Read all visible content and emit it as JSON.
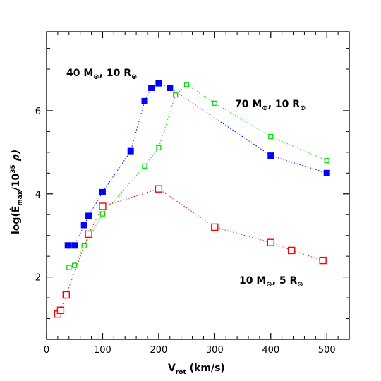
{
  "chart_data": {
    "type": "scatter",
    "xlabel": "V",
    "xlabel_sub": "rot",
    "xlabel_unit": " (km/s)",
    "ylabel": "log(Ė",
    "ylabel_sub": "max",
    "ylabel_rest": "/10",
    "ylabel_sup": "35",
    "ylabel_end": " ρ)",
    "xlim": [
      0,
      540
    ],
    "ylim": [
      0.5,
      7.9
    ],
    "xticks": [
      0,
      100,
      200,
      300,
      400,
      500
    ],
    "yticks": [
      2,
      4,
      6
    ],
    "grid": false,
    "series": [
      {
        "name_main": "40 M",
        "name_sub": "⊙",
        "name_tail": ", 10 R",
        "name_tail_sub": "⊙",
        "marker": "filled-square",
        "color": "#0000ff",
        "line": "dotted",
        "x": [
          38,
          50,
          67,
          75,
          100,
          150,
          175,
          187,
          200,
          220,
          400,
          500
        ],
        "y": [
          2.76,
          2.76,
          3.25,
          3.47,
          4.04,
          5.03,
          6.23,
          6.55,
          6.66,
          6.55,
          4.92,
          4.5
        ]
      },
      {
        "name_main": "70 M",
        "name_sub": "⊙",
        "name_tail": ", 10 R",
        "name_tail_sub": "⊙",
        "marker": "open-square-small",
        "color": "#00dd00",
        "line": "dotted",
        "x": [
          40,
          50,
          67,
          100,
          175,
          200,
          230,
          250,
          300,
          400,
          500
        ],
        "y": [
          2.23,
          2.28,
          2.75,
          3.52,
          4.67,
          5.11,
          6.38,
          6.63,
          6.18,
          5.38,
          4.8
        ]
      },
      {
        "name_main": "10 M",
        "name_sub": "⊙",
        "name_tail": ", 5 R",
        "name_tail_sub": "⊙",
        "marker": "open-square",
        "color": "#ff0000",
        "line": "dotted",
        "x": [
          20,
          25,
          35,
          75,
          100,
          200,
          300,
          400,
          437,
          493
        ],
        "y": [
          1.11,
          1.2,
          1.57,
          3.03,
          3.7,
          4.12,
          3.2,
          2.83,
          2.64,
          2.4
        ]
      }
    ]
  }
}
